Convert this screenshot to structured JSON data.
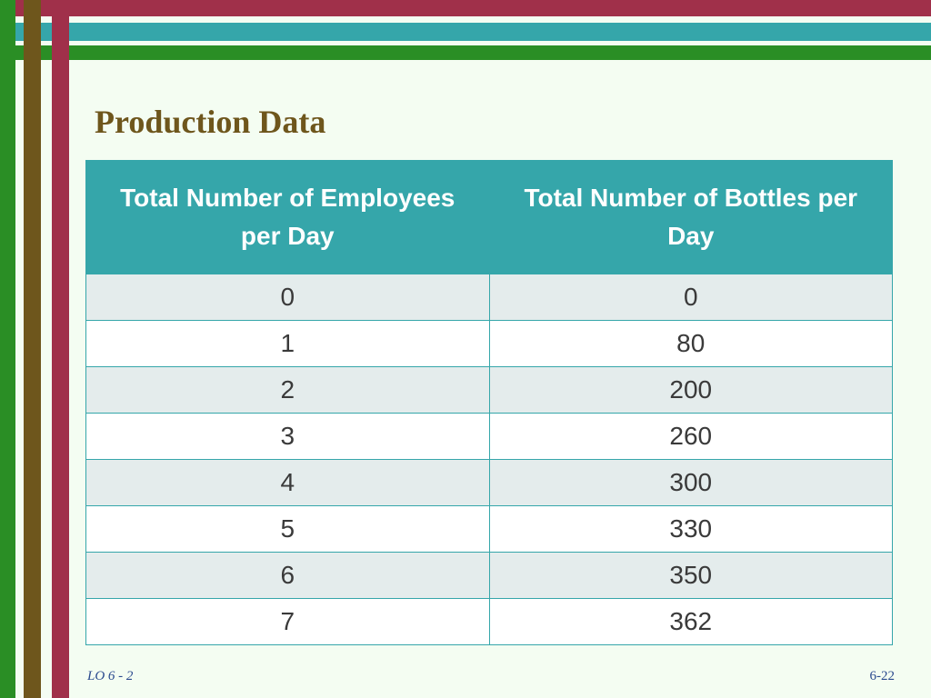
{
  "slide": {
    "title": "Production Data",
    "footer_left": "LO 6 - 2",
    "footer_right": "6-22"
  },
  "table": {
    "headers": [
      "Total Number of Employees per Day",
      "Total Number of Bottles per Day"
    ],
    "rows": [
      [
        "0",
        "0"
      ],
      [
        "1",
        "80"
      ],
      [
        "2",
        "200"
      ],
      [
        "3",
        "260"
      ],
      [
        "4",
        "300"
      ],
      [
        "5",
        "330"
      ],
      [
        "6",
        "350"
      ],
      [
        "7",
        "362"
      ]
    ]
  },
  "colors": {
    "crimson": "#a0304a",
    "teal": "#35a6aa",
    "green": "#2a8e25",
    "olive": "#6e561c",
    "background": "#f4fdf2"
  }
}
